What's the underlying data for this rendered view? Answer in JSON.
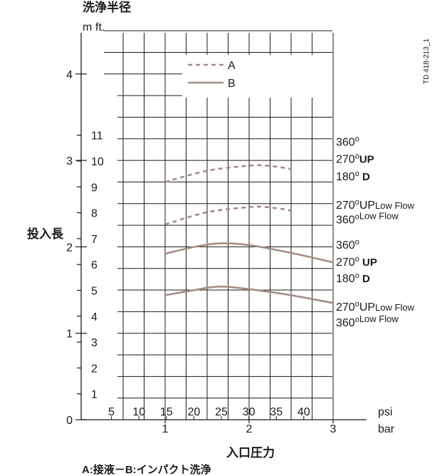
{
  "chart_data": {
    "type": "line",
    "title": "洗浄半径",
    "ylabel": "投入長",
    "xlabel": "入口圧力",
    "caption": "A:接液－B:インパクト洗浄",
    "figure_id": "TD 418-213_1",
    "y_unit_m": "m",
    "y_unit_ft": "ft.",
    "x_unit_bar": "bar",
    "x_unit_psi": "psi",
    "xlim_bar": [
      0,
      3
    ],
    "ylim_m": [
      0,
      4.6
    ],
    "bar_ticks": [
      "1",
      "2",
      "3"
    ],
    "psi_ticks": [
      "5",
      "10",
      "15",
      "20",
      "25",
      "30",
      "35",
      "40"
    ],
    "m_ticks": [
      "0",
      "1",
      "2",
      "3",
      "4"
    ],
    "ft_ticks": [
      "1",
      "2",
      "3",
      "4",
      "5",
      "6",
      "7",
      "8",
      "9",
      "10",
      "11"
    ],
    "grid": true,
    "legend_position": "top-center",
    "legend": [
      {
        "key": "A",
        "style": "dashed"
      },
      {
        "key": "B",
        "style": "solid"
      }
    ],
    "series": [
      {
        "name": "A",
        "style": "dashed",
        "x": [
          1.0,
          1.5,
          2.0,
          2.2,
          2.45,
          2.5
        ],
        "y": [
          2.75,
          2.88,
          2.94,
          2.94,
          2.91,
          2.89
        ]
      },
      {
        "name": "A",
        "style": "dashed",
        "x": [
          1.0,
          1.5,
          2.0,
          2.2,
          2.45,
          2.5
        ],
        "y": [
          2.26,
          2.4,
          2.46,
          2.46,
          2.43,
          2.41
        ]
      },
      {
        "name": "B",
        "style": "solid",
        "x": [
          1.0,
          1.35,
          1.65,
          2.0,
          2.5,
          3.0
        ],
        "y": [
          1.92,
          2.0,
          2.04,
          2.02,
          1.93,
          1.82
        ]
      },
      {
        "name": "B",
        "style": "solid",
        "x": [
          1.0,
          1.35,
          1.65,
          2.0,
          2.5,
          3.0
        ],
        "y": [
          1.44,
          1.5,
          1.54,
          1.51,
          1.44,
          1.35
        ]
      }
    ],
    "annotations": [
      {
        "y": 3.22,
        "main": "360",
        "sup": "o",
        "suffix": "",
        "small": ""
      },
      {
        "y": 3.02,
        "main": "270",
        "sup": "o",
        "suffix": "UP",
        "small": ""
      },
      {
        "y": 2.82,
        "main": "180",
        "sup": "o",
        "suffix": " D",
        "small": ""
      },
      {
        "y": 2.49,
        "main": "270",
        "sup": "o",
        "suffix": "UP",
        "small": "Low Flow"
      },
      {
        "y": 2.32,
        "main": "360",
        "sup": "o",
        "suffix": "",
        "small": "Low Flow"
      },
      {
        "y": 2.03,
        "main": "360",
        "sup": "o",
        "suffix": "",
        "small": ""
      },
      {
        "y": 1.83,
        "main": "270",
        "sup": "o",
        "suffix": " UP",
        "small": ""
      },
      {
        "y": 1.64,
        "main": "180",
        "sup": "o",
        "suffix": " D",
        "small": ""
      },
      {
        "y": 1.31,
        "main": "270",
        "sup": "o",
        "suffix": "UP",
        "small": "Low Flow"
      },
      {
        "y": 1.13,
        "main": "360",
        "sup": "o",
        "suffix": "",
        "small": "Low Flow"
      }
    ],
    "colors": {
      "curve": "#a58c86",
      "grid": "#1a1a1a",
      "text": "#1a1a1a"
    }
  }
}
